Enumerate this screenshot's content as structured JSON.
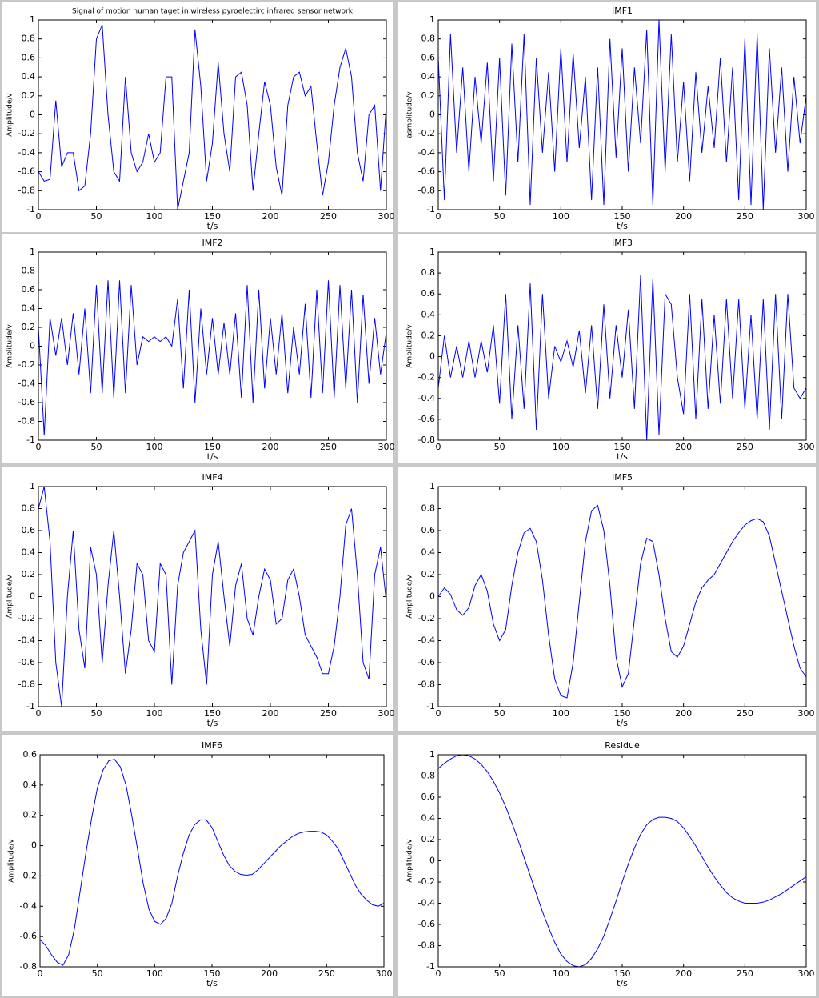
{
  "chart_data": [
    {
      "type": "line",
      "title": "Signal of motion human taget in wireless pyroelectirc infrared sensor network",
      "x_label": "t/s",
      "y_label": "Amplitude/v",
      "color": "#0000ff",
      "x": [
        0,
        5,
        10,
        15,
        20,
        25,
        30,
        35,
        40,
        45,
        50,
        55,
        60,
        65,
        70,
        75,
        80,
        85,
        90,
        95,
        100,
        105,
        110,
        115,
        120,
        125,
        130,
        135,
        140,
        145,
        150,
        155,
        160,
        165,
        170,
        175,
        180,
        185,
        190,
        195,
        200,
        205,
        210,
        215,
        220,
        225,
        230,
        235,
        240,
        245,
        250,
        255,
        260,
        265,
        270,
        275,
        280,
        285,
        290,
        295,
        300
      ],
      "values": [
        -0.6,
        -0.7,
        -0.68,
        0.15,
        -0.55,
        -0.4,
        -0.4,
        -0.8,
        -0.75,
        -0.2,
        0.8,
        0.95,
        0.0,
        -0.6,
        -0.7,
        0.4,
        -0.4,
        -0.6,
        -0.5,
        -0.2,
        -0.5,
        -0.4,
        0.4,
        0.4,
        -1,
        -0.7,
        -0.4,
        0.9,
        0.3,
        -0.7,
        -0.3,
        0.55,
        -0.2,
        -0.6,
        0.4,
        0.45,
        0.1,
        -0.8,
        -0.2,
        0.35,
        0.1,
        -0.55,
        -0.85,
        0.1,
        0.4,
        0.45,
        0.2,
        0.3,
        -0.3,
        -0.85,
        -0.5,
        0.1,
        0.5,
        0.7,
        0.4,
        -0.4,
        -0.7,
        0.0,
        0.1,
        -0.8,
        0.1
      ],
      "xlim": [
        0,
        300
      ],
      "xticks": [
        0,
        50,
        100,
        150,
        200,
        250,
        300
      ],
      "ylim": [
        -1,
        1
      ],
      "yticks": [
        -1,
        -0.8,
        -0.6,
        -0.4,
        -0.2,
        0,
        0.2,
        0.4,
        0.6,
        0.8,
        1
      ]
    },
    {
      "type": "line",
      "title": "IMF1",
      "x_label": "t/s",
      "y_label": "asmplitude/v",
      "color": "#0000ff",
      "x": [
        0,
        5,
        10,
        15,
        20,
        25,
        30,
        35,
        40,
        45,
        50,
        55,
        60,
        65,
        70,
        75,
        80,
        85,
        90,
        95,
        100,
        105,
        110,
        115,
        120,
        125,
        130,
        135,
        140,
        145,
        150,
        155,
        160,
        165,
        170,
        175,
        180,
        185,
        190,
        195,
        200,
        205,
        210,
        215,
        220,
        225,
        230,
        235,
        240,
        245,
        250,
        255,
        260,
        265,
        270,
        275,
        280,
        285,
        290,
        295,
        300
      ],
      "values": [
        0.6,
        -0.9,
        0.85,
        -0.4,
        0.5,
        -0.6,
        0.4,
        -0.3,
        0.55,
        -0.7,
        0.6,
        -0.85,
        0.75,
        -0.5,
        0.85,
        -0.95,
        0.6,
        -0.4,
        0.45,
        -0.6,
        0.7,
        -0.5,
        0.65,
        -0.35,
        0.4,
        -0.9,
        0.5,
        -0.95,
        0.8,
        -0.45,
        0.7,
        -0.6,
        0.5,
        -0.3,
        0.9,
        -0.95,
        1.0,
        -0.6,
        0.85,
        -0.5,
        0.35,
        -0.7,
        0.45,
        -0.4,
        0.3,
        -0.35,
        0.6,
        -0.5,
        0.5,
        -0.9,
        0.8,
        -0.95,
        0.85,
        -1.0,
        0.7,
        -0.4,
        0.5,
        -0.6,
        0.4,
        -0.3,
        0.2
      ],
      "xlim": [
        0,
        300
      ],
      "xticks": [
        0,
        50,
        100,
        150,
        200,
        250,
        300
      ],
      "ylim": [
        -1,
        1
      ],
      "yticks": [
        -1,
        -0.8,
        -0.6,
        -0.4,
        -0.2,
        0,
        0.2,
        0.4,
        0.6,
        0.8,
        1
      ]
    },
    {
      "type": "line",
      "title": "IMF2",
      "x_label": "t/s",
      "y_label": "Amplitude/v",
      "color": "#0000ff",
      "x": [
        0,
        5,
        10,
        15,
        20,
        25,
        30,
        35,
        40,
        45,
        50,
        55,
        60,
        65,
        70,
        75,
        80,
        85,
        90,
        95,
        100,
        105,
        110,
        115,
        120,
        125,
        130,
        135,
        140,
        145,
        150,
        155,
        160,
        165,
        170,
        175,
        180,
        185,
        190,
        195,
        200,
        205,
        210,
        215,
        220,
        225,
        230,
        235,
        240,
        245,
        250,
        255,
        260,
        265,
        270,
        275,
        280,
        285,
        290,
        295,
        300
      ],
      "values": [
        0.2,
        -0.95,
        0.3,
        -0.1,
        0.3,
        -0.2,
        0.35,
        -0.3,
        0.4,
        -0.5,
        0.65,
        -0.5,
        0.7,
        -0.55,
        0.7,
        -0.5,
        0.65,
        -0.2,
        0.1,
        0.05,
        0.1,
        0.05,
        0.1,
        0.0,
        0.5,
        -0.45,
        0.6,
        -0.6,
        0.4,
        -0.3,
        0.3,
        -0.3,
        0.25,
        -0.3,
        0.35,
        -0.55,
        0.65,
        -0.6,
        0.6,
        -0.45,
        0.3,
        -0.3,
        0.35,
        -0.5,
        0.2,
        -0.3,
        0.45,
        -0.55,
        0.6,
        -0.5,
        0.7,
        -0.55,
        0.65,
        -0.45,
        0.6,
        -0.6,
        0.55,
        -0.4,
        0.3,
        -0.3,
        0.15
      ],
      "xlim": [
        0,
        300
      ],
      "xticks": [
        0,
        50,
        100,
        150,
        200,
        250,
        300
      ],
      "ylim": [
        -1,
        1
      ],
      "yticks": [
        -1,
        -0.8,
        -0.6,
        -0.4,
        -0.2,
        0,
        0.2,
        0.4,
        0.6,
        0.8,
        1
      ]
    },
    {
      "type": "line",
      "title": "IMF3",
      "x_label": "t/s",
      "y_label": "Amplitude/v",
      "color": "#0000ff",
      "x": [
        0,
        5,
        10,
        15,
        20,
        25,
        30,
        35,
        40,
        45,
        50,
        55,
        60,
        65,
        70,
        75,
        80,
        85,
        90,
        95,
        100,
        105,
        110,
        115,
        120,
        125,
        130,
        135,
        140,
        145,
        150,
        155,
        160,
        165,
        170,
        175,
        180,
        185,
        190,
        195,
        200,
        205,
        210,
        215,
        220,
        225,
        230,
        235,
        240,
        245,
        250,
        255,
        260,
        265,
        270,
        275,
        280,
        285,
        290,
        295,
        300
      ],
      "values": [
        -0.3,
        0.2,
        -0.2,
        0.1,
        -0.2,
        0.15,
        -0.2,
        0.15,
        -0.15,
        0.3,
        -0.45,
        0.6,
        -0.6,
        0.3,
        -0.5,
        0.7,
        -0.7,
        0.6,
        -0.4,
        0.1,
        -0.05,
        0.15,
        -0.1,
        0.25,
        -0.35,
        0.3,
        -0.5,
        0.5,
        -0.4,
        0.3,
        -0.2,
        0.45,
        -0.5,
        0.78,
        -0.8,
        0.75,
        -0.75,
        0.6,
        0.5,
        -0.2,
        -0.55,
        0.6,
        -0.6,
        0.55,
        -0.5,
        0.4,
        -0.45,
        0.55,
        -0.4,
        0.55,
        -0.5,
        0.4,
        -0.6,
        0.55,
        -0.7,
        0.6,
        -0.6,
        0.6,
        -0.3,
        -0.4,
        -0.3
      ],
      "xlim": [
        0,
        300
      ],
      "xticks": [
        0,
        50,
        100,
        150,
        200,
        250,
        300
      ],
      "ylim": [
        -0.8,
        1
      ],
      "yticks": [
        -0.8,
        -0.6,
        -0.4,
        -0.2,
        0,
        0.2,
        0.4,
        0.6,
        0.8,
        1
      ]
    },
    {
      "type": "line",
      "title": "IMF4",
      "x_label": "t/s",
      "y_label": "Amplitude/v",
      "color": "#0000ff",
      "x": [
        0,
        5,
        10,
        15,
        20,
        25,
        30,
        35,
        40,
        45,
        50,
        55,
        60,
        65,
        70,
        75,
        80,
        85,
        90,
        95,
        100,
        105,
        110,
        115,
        120,
        125,
        130,
        135,
        140,
        145,
        150,
        155,
        160,
        165,
        170,
        175,
        180,
        185,
        190,
        195,
        200,
        205,
        210,
        215,
        220,
        225,
        230,
        235,
        240,
        245,
        250,
        255,
        260,
        265,
        270,
        275,
        280,
        285,
        290,
        295,
        300
      ],
      "values": [
        0.8,
        1,
        0.5,
        -0.6,
        -1,
        0,
        0.6,
        -0.3,
        -0.65,
        0.45,
        0.2,
        -0.6,
        0.1,
        0.6,
        0.0,
        -0.7,
        -0.3,
        0.3,
        0.2,
        -0.4,
        -0.5,
        0.3,
        0.2,
        -0.8,
        0.1,
        0.4,
        0.5,
        0.6,
        -0.3,
        -0.8,
        0.2,
        0.5,
        0.0,
        -0.45,
        0.1,
        0.3,
        -0.2,
        -0.35,
        0.0,
        0.25,
        0.15,
        -0.25,
        -0.2,
        0.15,
        0.25,
        0.0,
        -0.35,
        -0.45,
        -0.55,
        -0.7,
        -0.7,
        -0.45,
        0.0,
        0.65,
        0.8,
        0.2,
        -0.6,
        -0.75,
        0.2,
        0.45,
        -0.05
      ],
      "xlim": [
        0,
        300
      ],
      "xticks": [
        0,
        50,
        100,
        150,
        200,
        250,
        300
      ],
      "ylim": [
        -1,
        1
      ],
      "yticks": [
        -1,
        -0.8,
        -0.6,
        -0.4,
        -0.2,
        0,
        0.2,
        0.4,
        0.6,
        0.8,
        1
      ]
    },
    {
      "type": "line",
      "title": "IMF5",
      "x_label": "t/s",
      "y_label": "Amplitude/v",
      "color": "#0000ff",
      "x": [
        0,
        5,
        10,
        15,
        20,
        25,
        30,
        35,
        40,
        45,
        50,
        55,
        60,
        65,
        70,
        75,
        80,
        85,
        90,
        95,
        100,
        105,
        110,
        115,
        120,
        125,
        130,
        135,
        140,
        145,
        150,
        155,
        160,
        165,
        170,
        175,
        180,
        185,
        190,
        195,
        200,
        205,
        210,
        215,
        220,
        225,
        230,
        235,
        240,
        245,
        250,
        255,
        260,
        265,
        270,
        275,
        280,
        285,
        290,
        295,
        300
      ],
      "values": [
        0,
        0.08,
        0.02,
        -0.12,
        -0.17,
        -0.1,
        0.1,
        0.2,
        0.05,
        -0.25,
        -0.4,
        -0.3,
        0.1,
        0.4,
        0.58,
        0.62,
        0.5,
        0.15,
        -0.35,
        -0.75,
        -0.9,
        -0.92,
        -0.6,
        -0.05,
        0.5,
        0.78,
        0.83,
        0.6,
        0.1,
        -0.55,
        -0.82,
        -0.7,
        -0.2,
        0.3,
        0.53,
        0.5,
        0.2,
        -0.2,
        -0.5,
        -0.55,
        -0.45,
        -0.25,
        -0.05,
        0.08,
        0.15,
        0.2,
        0.3,
        0.4,
        0.5,
        0.58,
        0.65,
        0.69,
        0.71,
        0.68,
        0.55,
        0.3,
        0.05,
        -0.2,
        -0.45,
        -0.65,
        -0.73
      ],
      "xlim": [
        0,
        300
      ],
      "xticks": [
        0,
        50,
        100,
        150,
        200,
        250,
        300
      ],
      "ylim": [
        -1,
        1
      ],
      "yticks": [
        -1,
        -0.8,
        -0.6,
        -0.4,
        -0.2,
        0,
        0.2,
        0.4,
        0.6,
        0.8,
        1
      ]
    },
    {
      "type": "line",
      "title": "IMF6",
      "x_label": "t/s",
      "y_label": "Amplitude/v",
      "color": "#0000ff",
      "x": [
        0,
        5,
        10,
        15,
        20,
        25,
        30,
        35,
        40,
        45,
        50,
        55,
        60,
        65,
        70,
        75,
        80,
        85,
        90,
        95,
        100,
        105,
        110,
        115,
        120,
        125,
        130,
        135,
        140,
        145,
        150,
        155,
        160,
        165,
        170,
        175,
        180,
        185,
        190,
        195,
        200,
        205,
        210,
        215,
        220,
        225,
        230,
        235,
        240,
        245,
        250,
        255,
        260,
        265,
        270,
        275,
        280,
        285,
        290,
        295,
        300
      ],
      "values": [
        -0.62,
        -0.66,
        -0.72,
        -0.77,
        -0.79,
        -0.72,
        -0.55,
        -0.3,
        -0.05,
        0.18,
        0.38,
        0.5,
        0.56,
        0.57,
        0.52,
        0.4,
        0.2,
        -0.02,
        -0.25,
        -0.42,
        -0.5,
        -0.52,
        -0.48,
        -0.38,
        -0.2,
        -0.05,
        0.07,
        0.14,
        0.17,
        0.17,
        0.12,
        0.03,
        -0.06,
        -0.13,
        -0.17,
        -0.19,
        -0.195,
        -0.19,
        -0.16,
        -0.12,
        -0.08,
        -0.04,
        0.0,
        0.03,
        0.06,
        0.08,
        0.09,
        0.095,
        0.095,
        0.09,
        0.07,
        0.03,
        -0.02,
        -0.1,
        -0.18,
        -0.26,
        -0.32,
        -0.36,
        -0.39,
        -0.4,
        -0.38
      ],
      "xlim": [
        0,
        300
      ],
      "xticks": [
        0,
        50,
        100,
        150,
        200,
        250,
        300
      ],
      "ylim": [
        -0.8,
        0.6
      ],
      "yticks": [
        -0.8,
        -0.6,
        -0.4,
        -0.2,
        0,
        0.2,
        0.4,
        0.6
      ]
    },
    {
      "type": "line",
      "title": "Residue",
      "x_label": "t/s",
      "y_label": "Amplitude/v",
      "color": "#0000ff",
      "x": [
        0,
        5,
        10,
        15,
        20,
        25,
        30,
        35,
        40,
        45,
        50,
        55,
        60,
        65,
        70,
        75,
        80,
        85,
        90,
        95,
        100,
        105,
        110,
        115,
        120,
        125,
        130,
        135,
        140,
        145,
        150,
        155,
        160,
        165,
        170,
        175,
        180,
        185,
        190,
        195,
        200,
        205,
        210,
        215,
        220,
        225,
        230,
        235,
        240,
        245,
        250,
        255,
        260,
        265,
        270,
        275,
        280,
        285,
        290,
        295,
        300
      ],
      "values": [
        0.87,
        0.92,
        0.96,
        0.99,
        1.0,
        0.99,
        0.96,
        0.91,
        0.84,
        0.75,
        0.64,
        0.51,
        0.36,
        0.2,
        0.03,
        -0.14,
        -0.31,
        -0.48,
        -0.63,
        -0.77,
        -0.88,
        -0.95,
        -0.99,
        -1.0,
        -0.98,
        -0.92,
        -0.83,
        -0.71,
        -0.55,
        -0.38,
        -0.2,
        -0.03,
        0.12,
        0.25,
        0.34,
        0.39,
        0.41,
        0.41,
        0.4,
        0.37,
        0.31,
        0.23,
        0.14,
        0.04,
        -0.06,
        -0.15,
        -0.23,
        -0.3,
        -0.35,
        -0.38,
        -0.4,
        -0.4,
        -0.4,
        -0.39,
        -0.37,
        -0.34,
        -0.31,
        -0.27,
        -0.23,
        -0.19,
        -0.15
      ],
      "xlim": [
        0,
        300
      ],
      "xticks": [
        0,
        50,
        100,
        150,
        200,
        250,
        300
      ],
      "ylim": [
        -1,
        1
      ],
      "yticks": [
        -1,
        -0.8,
        -0.6,
        -0.4,
        -0.2,
        0,
        0.2,
        0.4,
        0.6,
        0.8,
        1
      ]
    }
  ]
}
